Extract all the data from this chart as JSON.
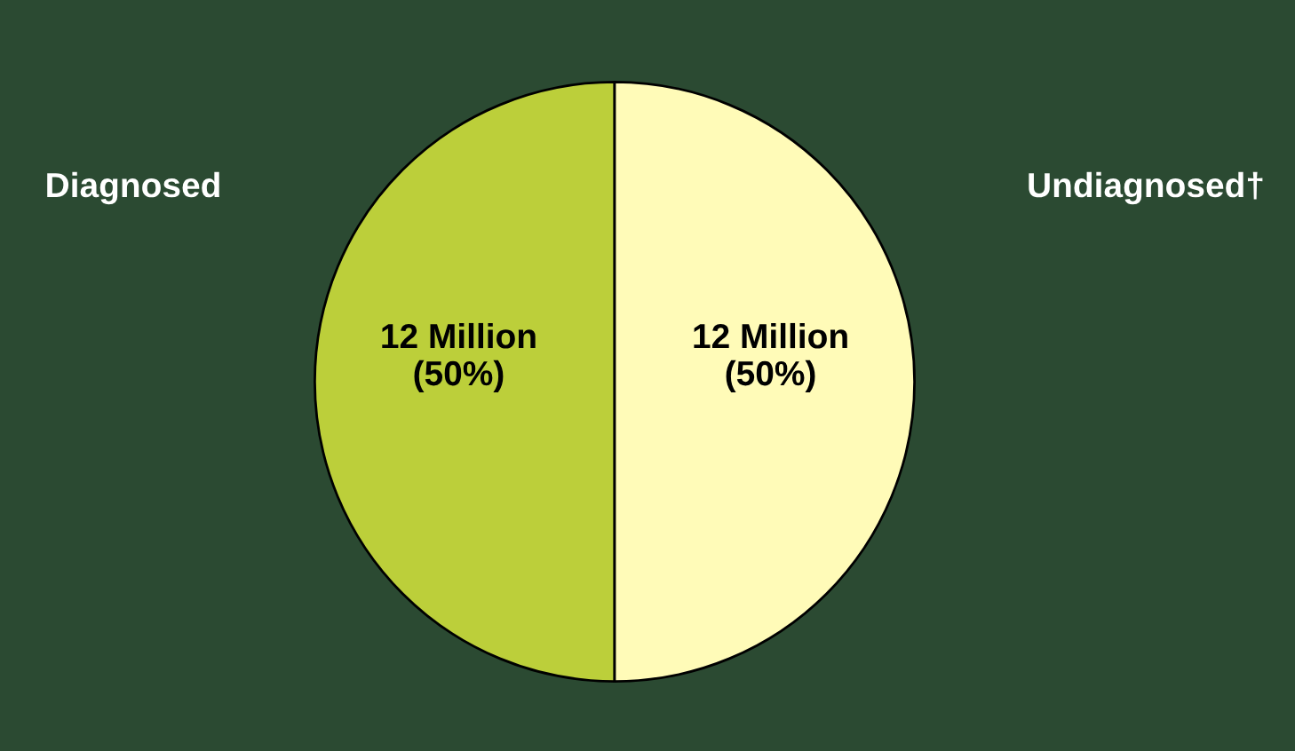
{
  "chart_data": {
    "type": "pie",
    "categories": [
      "Diagnosed",
      "Undiagnosed†"
    ],
    "values": [
      12,
      12
    ],
    "value_labels": [
      "12 Million\n(50%)",
      "12 Million\n(50%)"
    ],
    "colors": [
      "#bccf3a",
      "#fffbb8"
    ],
    "legend": false
  }
}
